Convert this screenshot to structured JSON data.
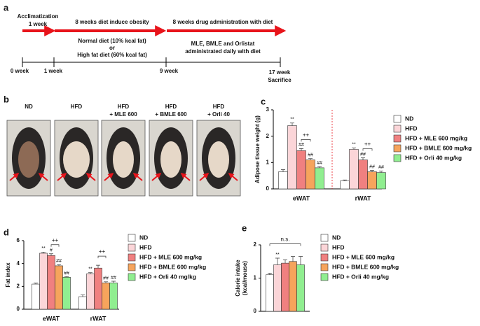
{
  "timeline": {
    "panel_label": "a",
    "phase_titles": [
      [
        "Acclimatization",
        "1 week"
      ],
      [
        "8 weeks diet induce obesity"
      ],
      [
        "8 weeks drug administration with diet"
      ]
    ],
    "notes": [
      [
        "Normal diet (10% kcal fat)",
        "or",
        "High fat diet (60% kcal fat)"
      ],
      [
        "MLE, BMLE and Orlistat",
        "administrated daily with diet"
      ]
    ],
    "ticks": [
      [
        "0 week"
      ],
      [
        "1 week"
      ],
      [
        "9 week"
      ],
      [
        "17 week",
        "Sacrifice"
      ]
    ]
  },
  "photos": {
    "panel_label": "b",
    "labels": [
      [
        "ND"
      ],
      [
        "HFD"
      ],
      [
        "HFD",
        "+ MLE 600"
      ],
      [
        "HFD",
        "+ BMLE 600"
      ],
      [
        "HFD",
        "+ Orli 40"
      ]
    ]
  },
  "chart_data": [
    {
      "type": "bar",
      "panel_label": "c",
      "ylabel": [
        "Adipose tissue weight (g)"
      ],
      "categories": [
        "eWAT",
        "rWAT"
      ],
      "ylim": [
        0,
        3
      ],
      "yticks": [
        0,
        1,
        2,
        3
      ],
      "brackets": [
        "++",
        "++"
      ],
      "series": [
        {
          "name": "ND",
          "color": "#ffffff",
          "values": [
            0.65,
            0.3
          ],
          "errors": [
            0.08,
            0.04
          ],
          "significance": [
            null,
            null
          ]
        },
        {
          "name": "HFD",
          "color": "#fbd5d8",
          "values": [
            2.4,
            1.5
          ],
          "errors": [
            0.1,
            0.05
          ],
          "significance": [
            "**",
            "**"
          ]
        },
        {
          "name": "HFD + MLE 600 mg/kg",
          "color": "#f08080",
          "values": [
            1.45,
            1.1
          ],
          "errors": [
            0.08,
            0.08
          ],
          "significance": [
            "##",
            "##"
          ]
        },
        {
          "name": "HFD + BMLE 600 mg/kg",
          "color": "#f6a45c",
          "values": [
            1.1,
            0.65
          ],
          "errors": [
            0.05,
            0.05
          ],
          "significance": [
            "##",
            "##"
          ]
        },
        {
          "name": "HFD + Orli 40 mg/kg",
          "color": "#90ee90",
          "values": [
            0.8,
            0.62
          ],
          "errors": [
            0.04,
            0.06
          ],
          "significance": [
            "##",
            "##"
          ]
        }
      ]
    },
    {
      "type": "bar",
      "panel_label": "d",
      "ylabel": [
        "Fat index"
      ],
      "categories": [
        "eWAT",
        "rWAT"
      ],
      "ylim": [
        0,
        6
      ],
      "yticks": [
        0,
        2,
        4,
        6
      ],
      "brackets": [
        "++",
        "++"
      ],
      "series": [
        {
          "name": "ND",
          "color": "#ffffff",
          "values": [
            2.2,
            1.1
          ],
          "errors": [
            0.08,
            0.15
          ],
          "significance": [
            null,
            null
          ]
        },
        {
          "name": "HFD",
          "color": "#fbd5d8",
          "values": [
            4.9,
            3.1
          ],
          "errors": [
            0.1,
            0.1
          ],
          "significance": [
            "**",
            "**"
          ]
        },
        {
          "name": "HFD + MLE 600 mg/kg",
          "color": "#f08080",
          "values": [
            4.7,
            3.6
          ],
          "errors": [
            0.15,
            0.25
          ],
          "significance": [
            "#",
            null
          ]
        },
        {
          "name": "HFD + BMLE 600 mg/kg",
          "color": "#f6a45c",
          "values": [
            3.8,
            2.3
          ],
          "errors": [
            0.1,
            0.1
          ],
          "significance": [
            "##",
            "##"
          ]
        },
        {
          "name": "HFD + Orli 40 mg/kg",
          "color": "#90ee90",
          "values": [
            2.8,
            2.3
          ],
          "errors": [
            0.05,
            0.15
          ],
          "significance": [
            "##",
            "##"
          ]
        }
      ]
    },
    {
      "type": "bar",
      "panel_label": "e",
      "ylabel": [
        "Calorie intake",
        "(kcal/mouse)"
      ],
      "categories": [
        null
      ],
      "ylim": [
        0,
        2
      ],
      "yticks": [
        0,
        1,
        2
      ],
      "brackets": [
        "n.s."
      ],
      "series": [
        {
          "name": "ND",
          "color": "#ffffff",
          "values": [
            1.1
          ],
          "errors": [
            0.05
          ],
          "significance": [
            null
          ]
        },
        {
          "name": "HFD",
          "color": "#fbd5d8",
          "values": [
            1.4
          ],
          "errors": [
            0.2
          ],
          "significance": [
            "**"
          ]
        },
        {
          "name": "HFD + MLE 600 mg/kg",
          "color": "#f08080",
          "values": [
            1.45
          ],
          "errors": [
            0.1
          ],
          "significance": [
            null
          ]
        },
        {
          "name": "HFD + BMLE 600 mg/kg",
          "color": "#f6a45c",
          "values": [
            1.5
          ],
          "errors": [
            0.15
          ],
          "significance": [
            null
          ]
        },
        {
          "name": "HFD + Orli 40 mg/kg",
          "color": "#90ee90",
          "values": [
            1.4
          ],
          "errors": [
            0.25
          ],
          "significance": [
            null
          ]
        }
      ]
    }
  ]
}
